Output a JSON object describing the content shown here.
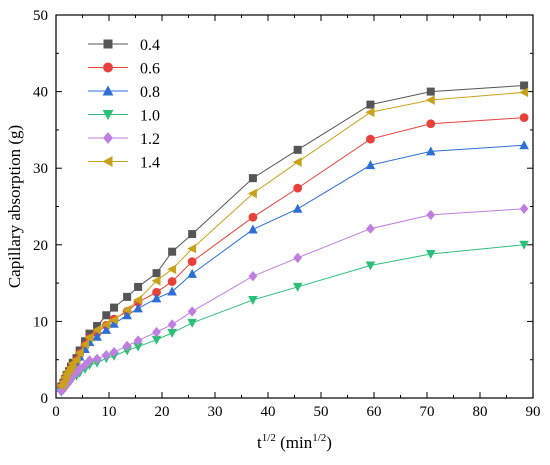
{
  "chart_data": {
    "type": "line",
    "xlabel_base": "t",
    "xlabel_sup": "1/2",
    "xlabel_unit_prefix": " (min",
    "xlabel_unit_sup": "1/2",
    "xlabel_unit_suffix": ")",
    "ylabel": "Capillary absorption (g)",
    "xlim": [
      0,
      90
    ],
    "ylim": [
      0,
      50
    ],
    "xticks": [
      "0",
      "10",
      "20",
      "30",
      "40",
      "50",
      "60",
      "70",
      "80",
      "90"
    ],
    "yticks": [
      "0",
      "10",
      "20",
      "30",
      "40",
      "50"
    ],
    "x": [
      1.0,
      1.41,
      1.73,
      2.0,
      2.45,
      2.83,
      3.16,
      3.87,
      4.47,
      5.48,
      6.32,
      7.75,
      9.49,
      10.95,
      13.42,
      15.49,
      18.97,
      21.91,
      25.69,
      37.15,
      45.6,
      59.33,
      70.71,
      88.32
    ],
    "series": [
      {
        "name": "0.4",
        "color": "#555555",
        "marker": "square",
        "values": [
          1.5,
          2.0,
          2.5,
          3.0,
          3.5,
          4.1,
          4.6,
          5.2,
          6.2,
          7.4,
          8.4,
          9.4,
          10.8,
          11.8,
          13.2,
          14.5,
          16.3,
          19.1,
          21.4,
          28.7,
          32.4,
          38.3,
          40.0,
          40.8
        ]
      },
      {
        "name": "0.6",
        "color": "#e8413c",
        "marker": "circle",
        "values": [
          1.4,
          1.8,
          2.3,
          2.8,
          3.3,
          3.8,
          4.3,
          4.9,
          5.8,
          6.9,
          7.8,
          8.5,
          9.5,
          10.3,
          11.3,
          12.5,
          13.8,
          15.2,
          17.8,
          23.6,
          27.4,
          33.8,
          35.8,
          36.6
        ]
      },
      {
        "name": "0.8",
        "color": "#2e6fd6",
        "marker": "triangle-up",
        "values": [
          1.3,
          1.7,
          2.2,
          2.7,
          3.1,
          3.6,
          4.1,
          4.6,
          5.4,
          6.4,
          7.3,
          8.0,
          8.9,
          9.7,
          10.8,
          11.7,
          13.0,
          13.9,
          16.2,
          22.0,
          24.7,
          30.4,
          32.2,
          33.0
        ]
      },
      {
        "name": "1.0",
        "color": "#2bbf78",
        "marker": "triangle-down",
        "values": [
          0.8,
          1.1,
          1.4,
          1.7,
          2.0,
          2.3,
          2.6,
          2.9,
          3.3,
          3.8,
          4.3,
          4.6,
          5.2,
          5.5,
          6.2,
          6.7,
          7.6,
          8.5,
          9.8,
          12.8,
          14.5,
          17.3,
          18.8,
          20.0
        ]
      },
      {
        "name": "1.2",
        "color": "#c07ee0",
        "marker": "diamond",
        "values": [
          0.9,
          1.2,
          1.5,
          1.8,
          2.2,
          2.5,
          2.9,
          3.3,
          3.8,
          4.3,
          4.9,
          5.1,
          5.6,
          6.0,
          6.8,
          7.5,
          8.6,
          9.6,
          11.3,
          15.9,
          18.3,
          22.1,
          23.9,
          24.7
        ]
      },
      {
        "name": "1.4",
        "color": "#c9a21b",
        "marker": "triangle-left",
        "values": [
          1.6,
          2.1,
          2.7,
          3.2,
          3.6,
          4.0,
          4.5,
          5.0,
          5.9,
          7.0,
          7.9,
          8.9,
          9.6,
          10.2,
          11.5,
          12.8,
          15.3,
          16.8,
          19.5,
          26.7,
          30.8,
          37.3,
          38.9,
          39.9
        ]
      }
    ]
  }
}
